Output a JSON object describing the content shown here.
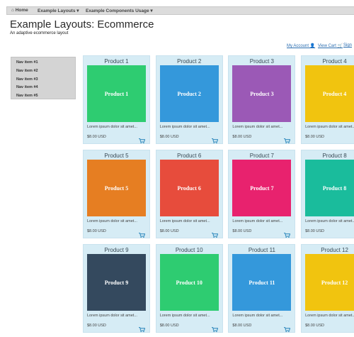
{
  "navbar": {
    "items": [
      "Home",
      "Example Layouts",
      "Example Components Usage"
    ]
  },
  "header": {
    "title": "Example Layouts: Ecommerce",
    "subtitle": "An adaptive ecommerce layout"
  },
  "account_links": [
    "My Account",
    "View Cart",
    "Sign"
  ],
  "sidebar": {
    "items": [
      "Nav item #1",
      "Nav item #2",
      "Nav item #3",
      "Nav item #4",
      "Nav item #5"
    ]
  },
  "products": [
    {
      "title": "Product 1",
      "image_label": "Product 1",
      "color": "#2ecc71",
      "description": "Lorem ipsum dolor sit amet...",
      "price": "$8.00 USD"
    },
    {
      "title": "Product 2",
      "image_label": "Product 2",
      "color": "#3498db",
      "description": "Lorem ipsum dolor sit amet...",
      "price": "$8.00 USD"
    },
    {
      "title": "Product 3",
      "image_label": "Product 3",
      "color": "#9b59b6",
      "description": "Lorem ipsum dolor sit amet...",
      "price": "$8.00 USD"
    },
    {
      "title": "Product 4",
      "image_label": "Product 4",
      "color": "#f1c40f",
      "description": "Lorem ipsum dolor sit amet...",
      "price": "$8.00 USD"
    },
    {
      "title": "Product 5",
      "image_label": "Product 5",
      "color": "#e67e22",
      "description": "Lorem ipsum dolor sit amet...",
      "price": "$8.00 USD"
    },
    {
      "title": "Product 6",
      "image_label": "Product 6",
      "color": "#e74c3c",
      "description": "Lorem ipsum dolor sit amet...",
      "price": "$8.00 USD"
    },
    {
      "title": "Product 7",
      "image_label": "Product 7",
      "color": "#e8226e",
      "description": "Lorem ipsum dolor sit amet...",
      "price": "$8.00 USD"
    },
    {
      "title": "Product 8",
      "image_label": "Product 8",
      "color": "#1abc9c",
      "description": "Lorem ipsum dolor sit amet...",
      "price": "$8.00 USD"
    },
    {
      "title": "Product 9",
      "image_label": "Product 9",
      "color": "#34495e",
      "description": "Lorem ipsum dolor sit amet...",
      "price": "$8.00 USD"
    },
    {
      "title": "Product 10",
      "image_label": "Product 10",
      "color": "#2ecc71",
      "description": "Lorem ipsum dolor sit amet...",
      "price": "$8.00 USD"
    },
    {
      "title": "Product 11",
      "image_label": "Product 11",
      "color": "#3498db",
      "description": "Lorem ipsum dolor sit amet...",
      "price": "$8.00 USD"
    },
    {
      "title": "Product 12",
      "image_label": "Product 12",
      "color": "#f1c40f",
      "description": "Lorem ipsum dolor sit amet...",
      "price": "$8.00 USD"
    }
  ]
}
